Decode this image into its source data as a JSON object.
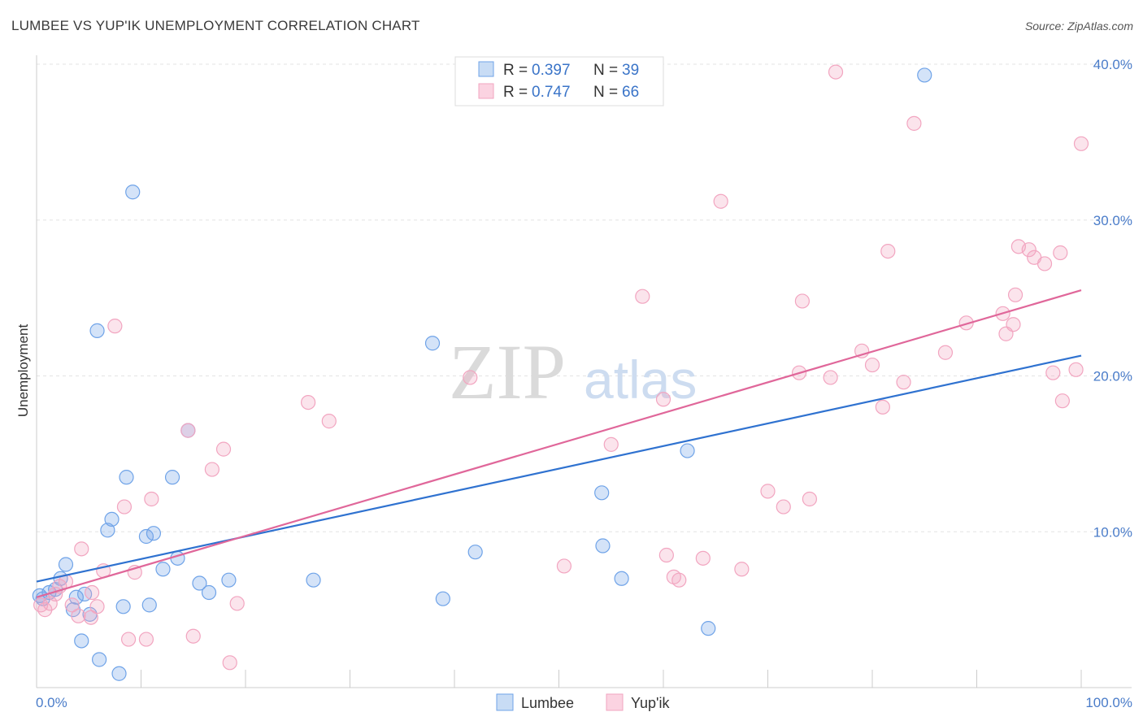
{
  "title": "LUMBEE VS YUP'IK UNEMPLOYMENT CORRELATION CHART",
  "source": "Source: ZipAtlas.com",
  "watermark": {
    "zip": "ZIP",
    "atlas": "atlas"
  },
  "chart_data": {
    "type": "scatter",
    "xlabel": "",
    "ylabel": "Unemployment",
    "xlim": [
      0,
      100
    ],
    "ylim": [
      0,
      40
    ],
    "x_tick_labels": [
      "0.0%",
      "100.0%"
    ],
    "y_ticks": [
      10,
      20,
      30,
      40
    ],
    "y_tick_labels": [
      "10.0%",
      "20.0%",
      "30.0%",
      "40.0%"
    ],
    "grid": true,
    "legend_position": "top-center",
    "stats_legend": [
      {
        "r_label": "R = ",
        "r_value": "0.397",
        "n_label": "N = ",
        "n_value": "39"
      },
      {
        "r_label": "R = ",
        "r_value": "0.747",
        "n_label": "N = ",
        "n_value": "66"
      }
    ],
    "series": [
      {
        "name": "Lumbee",
        "color": "#6fa3e8",
        "line_color": "#2f72d0",
        "trend": {
          "x": [
            0,
            100
          ],
          "y": [
            6.8,
            21.3
          ]
        },
        "points": [
          [
            0.3,
            5.9
          ],
          [
            0.6,
            5.7
          ],
          [
            1.2,
            6.1
          ],
          [
            1.8,
            6.3
          ],
          [
            2.3,
            7.0
          ],
          [
            2.8,
            7.9
          ],
          [
            3.5,
            5.0
          ],
          [
            3.8,
            5.8
          ],
          [
            4.3,
            3.0
          ],
          [
            4.6,
            6.0
          ],
          [
            5.1,
            4.7
          ],
          [
            5.8,
            22.9
          ],
          [
            6.0,
            1.8
          ],
          [
            6.8,
            10.1
          ],
          [
            7.2,
            10.8
          ],
          [
            7.9,
            0.9
          ],
          [
            8.3,
            5.2
          ],
          [
            8.6,
            13.5
          ],
          [
            9.2,
            31.8
          ],
          [
            10.5,
            9.7
          ],
          [
            10.8,
            5.3
          ],
          [
            11.2,
            9.9
          ],
          [
            12.1,
            7.6
          ],
          [
            13.0,
            13.5
          ],
          [
            13.5,
            8.3
          ],
          [
            14.5,
            16.5
          ],
          [
            15.6,
            6.7
          ],
          [
            16.5,
            6.1
          ],
          [
            18.4,
            6.9
          ],
          [
            26.5,
            6.9
          ],
          [
            37.9,
            22.1
          ],
          [
            38.9,
            5.7
          ],
          [
            42.0,
            8.7
          ],
          [
            54.1,
            12.5
          ],
          [
            54.2,
            9.1
          ],
          [
            56.0,
            7.0
          ],
          [
            62.3,
            15.2
          ],
          [
            64.3,
            3.8
          ],
          [
            85.0,
            39.3
          ]
        ]
      },
      {
        "name": "Yup'ik",
        "color": "#f2a5c0",
        "line_color": "#e0679a",
        "trend": {
          "x": [
            0,
            100
          ],
          "y": [
            5.8,
            25.5
          ]
        },
        "points": [
          [
            0.4,
            5.3
          ],
          [
            0.8,
            5.0
          ],
          [
            1.3,
            5.4
          ],
          [
            1.8,
            6.0
          ],
          [
            2.2,
            6.5
          ],
          [
            2.8,
            6.8
          ],
          [
            3.4,
            5.3
          ],
          [
            4.0,
            4.6
          ],
          [
            4.3,
            8.9
          ],
          [
            5.2,
            4.5
          ],
          [
            5.3,
            6.1
          ],
          [
            5.8,
            5.2
          ],
          [
            6.4,
            7.5
          ],
          [
            7.5,
            23.2
          ],
          [
            8.4,
            11.6
          ],
          [
            8.8,
            3.1
          ],
          [
            9.4,
            7.4
          ],
          [
            10.5,
            3.1
          ],
          [
            11.0,
            12.1
          ],
          [
            14.5,
            16.5
          ],
          [
            15.0,
            3.3
          ],
          [
            16.8,
            14.0
          ],
          [
            17.9,
            15.3
          ],
          [
            18.5,
            1.6
          ],
          [
            19.2,
            5.4
          ],
          [
            26.0,
            18.3
          ],
          [
            28.0,
            17.1
          ],
          [
            41.5,
            19.9
          ],
          [
            50.5,
            7.8
          ],
          [
            55.0,
            15.6
          ],
          [
            58.0,
            25.1
          ],
          [
            60.0,
            18.5
          ],
          [
            60.3,
            8.5
          ],
          [
            61.0,
            7.1
          ],
          [
            61.5,
            6.9
          ],
          [
            63.8,
            8.3
          ],
          [
            65.5,
            31.2
          ],
          [
            67.5,
            7.6
          ],
          [
            70.0,
            12.6
          ],
          [
            71.5,
            11.6
          ],
          [
            73.0,
            20.2
          ],
          [
            73.3,
            24.8
          ],
          [
            74.0,
            12.1
          ],
          [
            76.0,
            19.9
          ],
          [
            76.5,
            39.5
          ],
          [
            79.0,
            21.6
          ],
          [
            80.0,
            20.7
          ],
          [
            81.0,
            18.0
          ],
          [
            81.5,
            28.0
          ],
          [
            83.0,
            19.6
          ],
          [
            84.0,
            36.2
          ],
          [
            87.0,
            21.5
          ],
          [
            89.0,
            23.4
          ],
          [
            92.5,
            24.0
          ],
          [
            92.8,
            22.7
          ],
          [
            93.5,
            23.3
          ],
          [
            93.7,
            25.2
          ],
          [
            94.0,
            28.3
          ],
          [
            95.0,
            28.1
          ],
          [
            95.5,
            27.6
          ],
          [
            96.5,
            27.2
          ],
          [
            97.3,
            20.2
          ],
          [
            98.0,
            27.9
          ],
          [
            98.2,
            18.4
          ],
          [
            99.5,
            20.4
          ],
          [
            100.0,
            34.9
          ]
        ]
      }
    ]
  }
}
